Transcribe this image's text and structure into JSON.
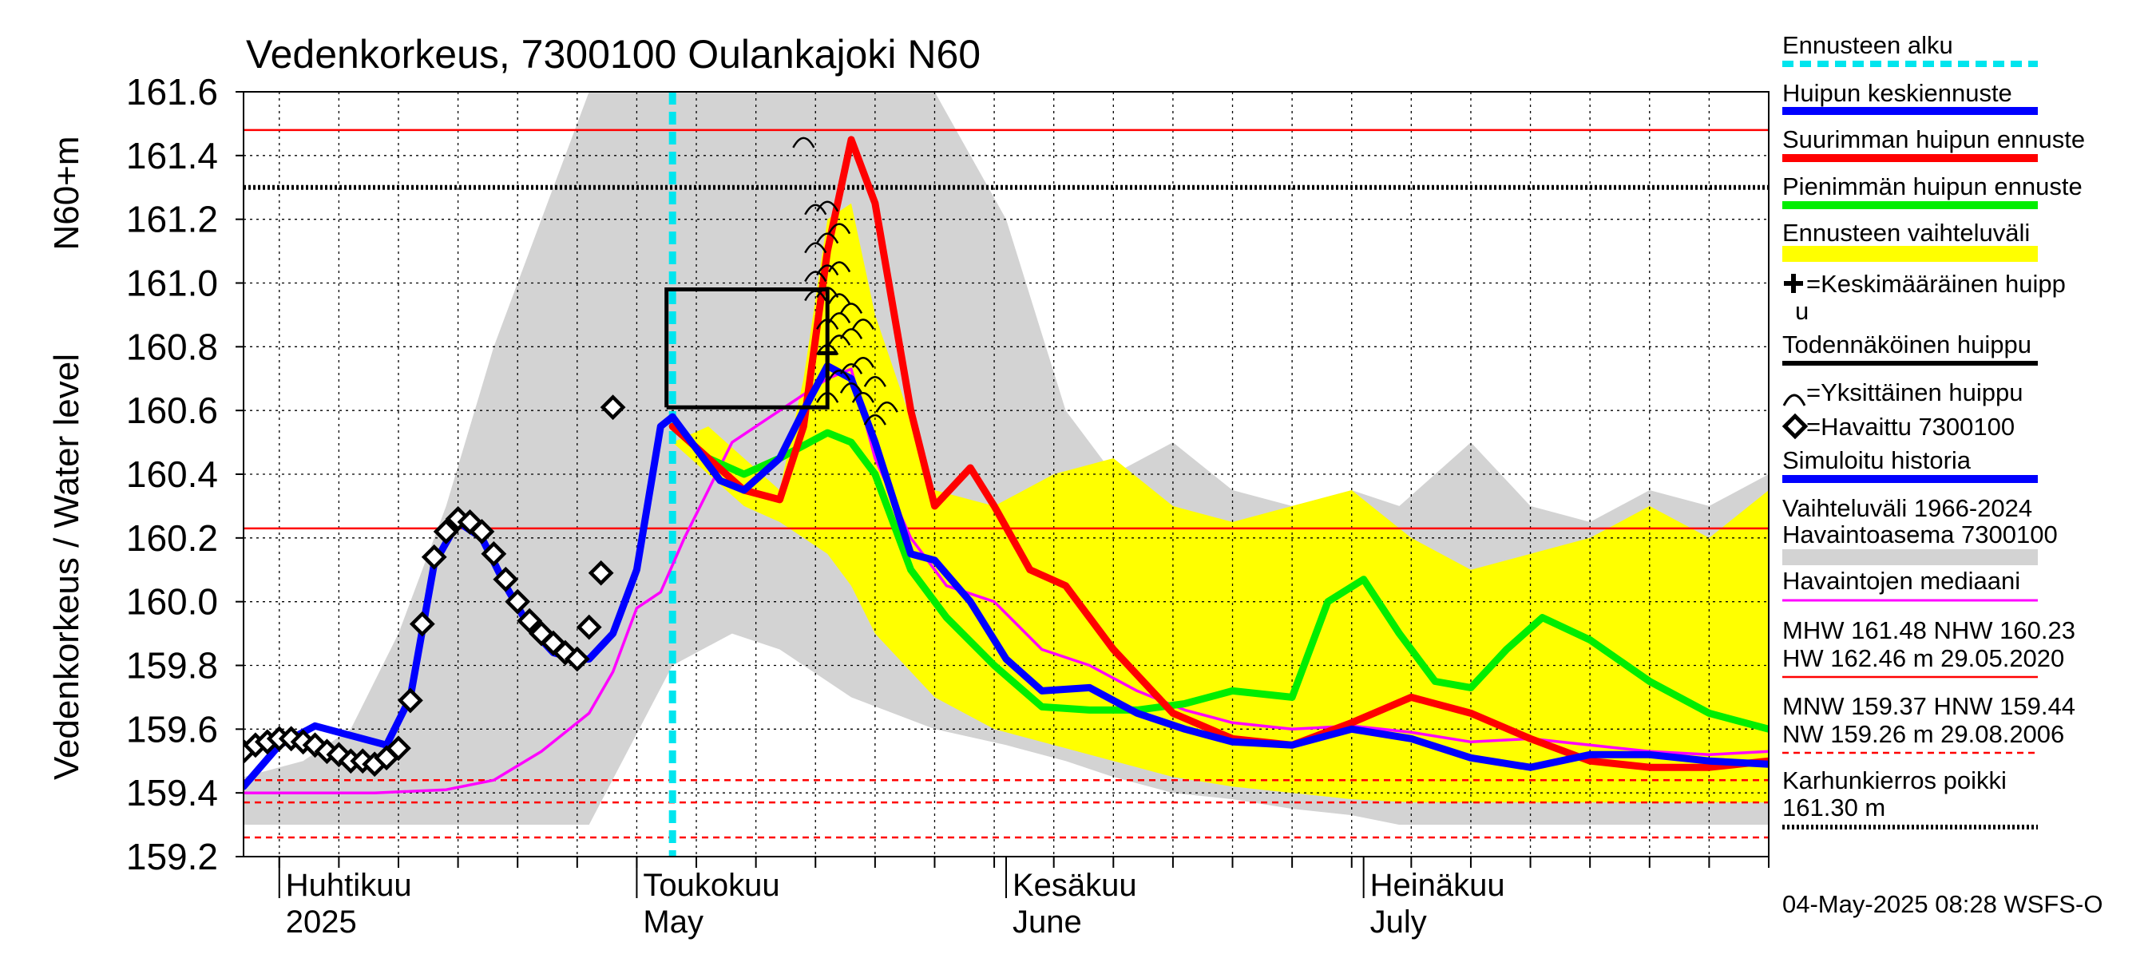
{
  "chart_data": {
    "type": "line",
    "title": "Vedenkorkeus, 7300100 Oulankajoki N60",
    "ylabel_top": "N60+m",
    "ylabel": "Vedenkorkeus / Water level",
    "ylim": [
      159.2,
      161.6
    ],
    "yticks": [
      159.2,
      159.4,
      159.6,
      159.8,
      160.0,
      160.2,
      160.4,
      160.6,
      160.8,
      161.0,
      161.2,
      161.4,
      161.6
    ],
    "xlim_days": [
      -33,
      95
    ],
    "x_origin_date": "2025-05-01",
    "months": [
      {
        "fi": "Huhtikuu",
        "en": "2025",
        "day": -30
      },
      {
        "fi": "Toukokuu",
        "en": "May",
        "day": 0
      },
      {
        "fi": "Kesäkuu",
        "en": "June",
        "day": 31
      },
      {
        "fi": "Heinäkuu",
        "en": "July",
        "day": 61
      }
    ],
    "forecast_start_day": 3,
    "hlines": {
      "MHW": 161.48,
      "NHW": 160.23,
      "karhunkierros": 161.3,
      "MNW": 159.37,
      "HNW": 159.44,
      "NW": 159.26
    },
    "range_band": {
      "x": [
        -33,
        -28,
        -24,
        -20,
        -16,
        -12,
        -8,
        -5,
        -4,
        3,
        8,
        12,
        18,
        25,
        31,
        36,
        40,
        45,
        50,
        55,
        60,
        64,
        70,
        75,
        80,
        85,
        90,
        95
      ],
      "upper": [
        159.45,
        159.5,
        159.6,
        159.9,
        160.3,
        160.8,
        161.2,
        161.5,
        161.6,
        161.6,
        161.6,
        161.6,
        161.6,
        161.6,
        161.2,
        160.6,
        160.4,
        160.5,
        160.35,
        160.3,
        160.35,
        160.3,
        160.5,
        160.3,
        160.25,
        160.35,
        160.3,
        160.4
      ],
      "lower": [
        159.3,
        159.3,
        159.3,
        159.3,
        159.3,
        159.3,
        159.3,
        159.3,
        159.3,
        159.8,
        159.9,
        159.85,
        159.7,
        159.6,
        159.55,
        159.5,
        159.45,
        159.4,
        159.38,
        159.35,
        159.33,
        159.3,
        159.3,
        159.3,
        159.3,
        159.3,
        159.3,
        159.3
      ]
    },
    "forecast_band": {
      "x": [
        3,
        6,
        9,
        12,
        14,
        16,
        18,
        20,
        25,
        30,
        35,
        40,
        45,
        50,
        55,
        60,
        65,
        70,
        75,
        80,
        85,
        90,
        95
      ],
      "upper": [
        160.5,
        160.55,
        160.45,
        160.35,
        160.7,
        161.2,
        161.25,
        160.9,
        160.35,
        160.3,
        160.4,
        160.45,
        160.3,
        160.25,
        160.3,
        160.35,
        160.2,
        160.1,
        160.15,
        160.2,
        160.3,
        160.2,
        160.35
      ],
      "lower": [
        160.5,
        160.4,
        160.3,
        160.25,
        160.2,
        160.15,
        160.05,
        159.9,
        159.7,
        159.6,
        159.55,
        159.5,
        159.45,
        159.42,
        159.4,
        159.38,
        159.37,
        159.37,
        159.37,
        159.37,
        159.37,
        159.37,
        159.37
      ]
    },
    "series": [
      {
        "name": "Suurimman huipun ennuste",
        "color": "#ff0000",
        "x": [
          3,
          6,
          9,
          12,
          14,
          16,
          18,
          20,
          23,
          25,
          28,
          30,
          33,
          36,
          40,
          45,
          50,
          55,
          60,
          65,
          70,
          75,
          80,
          85,
          90,
          95
        ],
        "y": [
          160.55,
          160.45,
          160.35,
          160.32,
          160.55,
          161.1,
          161.45,
          161.25,
          160.6,
          160.3,
          160.42,
          160.3,
          160.1,
          160.05,
          159.85,
          159.65,
          159.57,
          159.55,
          159.62,
          159.7,
          159.65,
          159.57,
          159.5,
          159.48,
          159.48,
          159.5
        ]
      },
      {
        "name": "Pienimmän huipun ennuste",
        "color": "#00ee00",
        "x": [
          3,
          6,
          9,
          12,
          16,
          18,
          20,
          23,
          26,
          30,
          34,
          38,
          42,
          46,
          50,
          55,
          58,
          61,
          64,
          67,
          70,
          73,
          76,
          80,
          85,
          90,
          95
        ],
        "y": [
          160.55,
          160.45,
          160.4,
          160.45,
          160.53,
          160.5,
          160.4,
          160.1,
          159.95,
          159.8,
          159.67,
          159.66,
          159.66,
          159.68,
          159.72,
          159.7,
          160.0,
          160.07,
          159.9,
          159.75,
          159.73,
          159.85,
          159.95,
          159.88,
          159.75,
          159.65,
          159.6
        ]
      },
      {
        "name": "Havaintojen mediaani",
        "color": "#ff00ff",
        "x": [
          -33,
          -28,
          -22,
          -16,
          -12,
          -8,
          -4,
          -2,
          0,
          2,
          4,
          6,
          8,
          12,
          16,
          18,
          20,
          23,
          26,
          30,
          34,
          38,
          42,
          46,
          50,
          55,
          60,
          65,
          70,
          75,
          80,
          85,
          90,
          95
        ],
        "y": [
          159.4,
          159.4,
          159.4,
          159.41,
          159.44,
          159.53,
          159.65,
          159.78,
          159.98,
          160.03,
          160.2,
          160.35,
          160.5,
          160.6,
          160.7,
          160.73,
          160.45,
          160.2,
          160.05,
          160.0,
          159.85,
          159.8,
          159.72,
          159.66,
          159.62,
          159.6,
          159.61,
          159.59,
          159.56,
          159.57,
          159.55,
          159.53,
          159.52,
          159.53
        ]
      },
      {
        "name": "Huipun keskiennuste",
        "color": "#0000ff",
        "x": [
          -33,
          -30,
          -27,
          -24,
          -21,
          -19,
          -17,
          -15,
          -13,
          -11,
          -9,
          -7,
          -5,
          -4,
          -2,
          0,
          2,
          3,
          5,
          7,
          9,
          12,
          14,
          16,
          18,
          20,
          23,
          25,
          28,
          31,
          34,
          38,
          42,
          46,
          50,
          55,
          60,
          65,
          70,
          75,
          80,
          85,
          90,
          95
        ],
        "y": [
          159.42,
          159.55,
          159.61,
          159.58,
          159.55,
          159.7,
          160.12,
          160.25,
          160.2,
          160.05,
          159.92,
          159.84,
          159.82,
          159.82,
          159.9,
          160.1,
          160.55,
          160.58,
          160.48,
          160.38,
          160.35,
          160.45,
          160.6,
          160.74,
          160.7,
          160.5,
          160.15,
          160.13,
          160.0,
          159.82,
          159.72,
          159.73,
          159.65,
          159.6,
          159.56,
          159.55,
          159.6,
          159.57,
          159.51,
          159.48,
          159.52,
          159.52,
          159.5,
          159.49
        ]
      }
    ],
    "observed": {
      "name": "Havaittu 7300100",
      "x": [
        -33,
        -32,
        -31,
        -30,
        -29,
        -28,
        -27,
        -26,
        -25,
        -24,
        -23,
        -22,
        -21,
        -20,
        -19,
        -18,
        -17,
        -16,
        -15,
        -14,
        -13,
        -12,
        -11,
        -10,
        -9,
        -8,
        -7,
        -6,
        -5,
        -4,
        -3,
        -2
      ],
      "y": [
        159.53,
        159.55,
        159.56,
        159.57,
        159.57,
        159.56,
        159.55,
        159.53,
        159.52,
        159.5,
        159.5,
        159.49,
        159.51,
        159.54,
        159.69,
        159.93,
        160.14,
        160.22,
        160.26,
        160.25,
        160.22,
        160.15,
        160.07,
        160.0,
        159.94,
        159.9,
        159.87,
        159.84,
        159.82,
        159.92,
        160.09,
        160.61
      ]
    },
    "probable_peak": {
      "x": [
        2.5,
        2.5,
        16,
        16,
        2.5
      ],
      "y": [
        160.61,
        160.98,
        160.98,
        160.61,
        160.61
      ]
    },
    "mean_peak": {
      "x": 16,
      "y": 160.78
    },
    "individual_peaks": {
      "x": [
        14,
        15,
        16,
        15,
        16,
        17,
        15,
        16,
        17,
        15,
        16,
        17,
        16,
        17,
        18,
        16,
        17,
        18,
        19,
        17,
        18,
        19,
        16,
        18,
        19,
        20,
        21,
        20
      ],
      "y": [
        161.45,
        161.24,
        161.25,
        161.12,
        161.15,
        161.18,
        161.03,
        161.05,
        161.06,
        160.97,
        160.98,
        160.96,
        160.88,
        160.9,
        160.93,
        160.8,
        160.83,
        160.85,
        160.88,
        160.72,
        160.74,
        160.76,
        160.65,
        160.68,
        160.65,
        160.7,
        160.62,
        160.58
      ]
    },
    "legend": {
      "forecast_start": "Ennusteen alku",
      "mean_forecast": "Huipun keskiennuste",
      "max_forecast": "Suurimman huipun ennuste",
      "min_forecast": "Pienimmän huipun ennuste",
      "forecast_range": "Ennusteen vaihteluväli",
      "mean_peak_l1": "=Keskimääräinen huipp",
      "mean_peak_l2": "u",
      "probable_peak": "Todennäköinen huippu",
      "single_peak": "=Yksittäinen huippu",
      "observed": "=Havaittu 7300100",
      "simulated": "Simuloitu historia",
      "range_l1": "Vaihteluväli 1966-2024",
      "range_l2": " Havaintoasema 7300100",
      "median": "Havaintojen mediaani",
      "stats1_l1": "MHW 161.48 NHW 160.23",
      "stats1_l2": "HW 162.46 m 29.05.2020",
      "stats2_l1": "MNW 159.37 HNW 159.44",
      "stats2_l2": "NW 159.26 m 29.08.2006",
      "karhu_l1": "Karhunkierros poikki",
      "karhu_l2": "161.30 m"
    },
    "footer": "04-May-2025 08:28 WSFS-O",
    "colors": {
      "range": "#d3d3d3",
      "forecast_band": "#ffff00",
      "forecast_start": "#00e5ee",
      "max": "#ff0000",
      "min": "#00ee00",
      "mean": "#0000ff",
      "median": "#ff00ff"
    }
  }
}
